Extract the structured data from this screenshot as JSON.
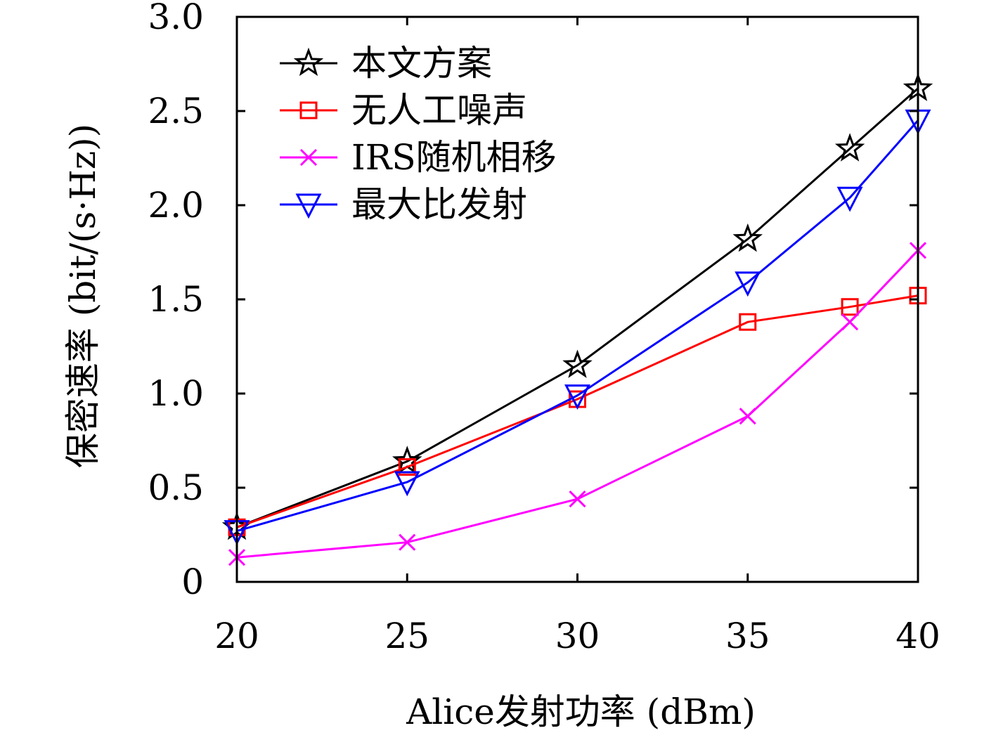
{
  "chart_data": {
    "type": "line",
    "xlabel": "Alice发射功率 (dBm)",
    "ylabel": "保密速率 (bit/(s·Hz))",
    "x": [
      20,
      25,
      30,
      35,
      38,
      40
    ],
    "xticks": [
      "20",
      "25",
      "30",
      "35",
      "40"
    ],
    "xtick_values": [
      20,
      25,
      30,
      35,
      40
    ],
    "xlim": [
      20,
      40
    ],
    "yticks": [
      "0",
      "0.5",
      "1.0",
      "1.5",
      "2.0",
      "2.5",
      "3.0"
    ],
    "ytick_values": [
      0,
      0.5,
      1.0,
      1.5,
      2.0,
      2.5,
      3.0
    ],
    "ylim": [
      0,
      3.0
    ],
    "grid": false,
    "legend_position": "top-left",
    "series": [
      {
        "name": "本文方案",
        "color": "#000000",
        "marker": "star",
        "values": [
          0.29,
          0.64,
          1.15,
          1.82,
          2.3,
          2.62
        ]
      },
      {
        "name": "无人工噪声",
        "color": "#ff0000",
        "marker": "square",
        "values": [
          0.29,
          0.61,
          0.97,
          1.38,
          1.46,
          1.52
        ]
      },
      {
        "name": "IRS随机相移",
        "color": "#ff00ff",
        "marker": "x",
        "values": [
          0.13,
          0.21,
          0.44,
          0.88,
          1.38,
          1.76
        ]
      },
      {
        "name": "最大比发射",
        "color": "#0000ff",
        "marker": "triangle-down",
        "values": [
          0.27,
          0.53,
          0.99,
          1.59,
          2.04,
          2.45
        ]
      }
    ]
  }
}
